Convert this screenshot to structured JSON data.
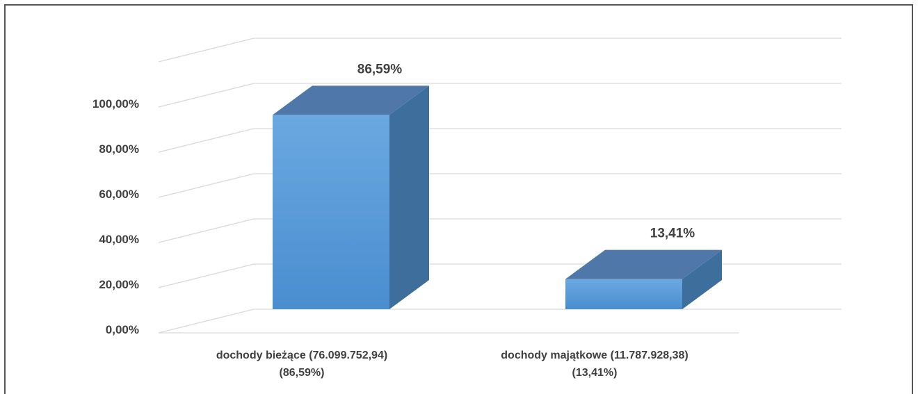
{
  "chart_data": {
    "type": "bar",
    "title": "",
    "xlabel": "",
    "ylabel": "",
    "categories": [
      [
        "dochody bieżące (76.099.752,94)",
        "(86,59%)"
      ],
      [
        "dochody majątkowe (11.787.928,38)",
        "(13,41%)"
      ]
    ],
    "values": [
      86.59,
      13.41
    ],
    "data_labels": [
      "86,59%",
      "13,41%"
    ],
    "y_ticks": [
      "0,00%",
      "20,00%",
      "40,00%",
      "60,00%",
      "80,00%",
      "100,00%"
    ],
    "ylim": [
      0,
      100
    ],
    "grid": true,
    "style": "3d-column",
    "colors": {
      "front": "#5b9bd5",
      "top": "#4f78a8",
      "side": "#3e6e9c",
      "grid": "#d9d9d9",
      "text": "#404040"
    }
  }
}
